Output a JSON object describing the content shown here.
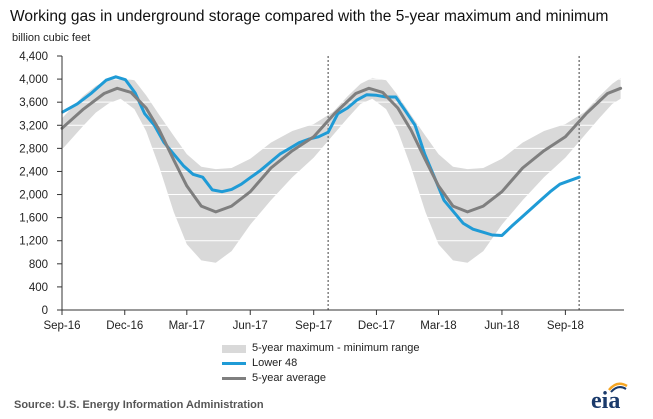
{
  "header": {
    "title": "Working gas in underground  storage compared with the 5-year maximum and minimum",
    "units": "billion cubic feet"
  },
  "legend": {
    "range_label": "5-year maximum - minimum range",
    "lower48_label": "Lower 48",
    "avg_label": "5-year average"
  },
  "footer": {
    "source": "Source:  U.S. Energy Information Administration",
    "logo_text": "eia"
  },
  "colors": {
    "range": "#d9d9d9",
    "lower48": "#1f9bd6",
    "average": "#7f7f7f",
    "axis": "#333333",
    "divider": "#808080",
    "logo": "#1a3a6b",
    "logo_accent": "#f6a623"
  },
  "chart_data": {
    "type": "line",
    "ylabel": "billion cubic feet",
    "ylim": [
      0,
      4400
    ],
    "yticks": [
      0,
      400,
      800,
      1200,
      1600,
      2000,
      2400,
      2800,
      3200,
      3600,
      4000,
      4400
    ],
    "ytick_labels": [
      "0",
      "400",
      "800",
      "1,200",
      "1,600",
      "2,000",
      "2,400",
      "2,800",
      "3,200",
      "3,600",
      "4,000",
      "4,400"
    ],
    "xlim": [
      "2016-09-01",
      "2018-11-25"
    ],
    "xticks": [
      "2016-09-01",
      "2016-12-01",
      "2017-03-01",
      "2017-06-01",
      "2017-09-01",
      "2017-12-01",
      "2018-03-01",
      "2018-06-01",
      "2018-09-01"
    ],
    "xtick_labels": [
      "Sep-16",
      "Dec-16",
      "Mar-17",
      "Jun-17",
      "Sep-17",
      "Dec-17",
      "Mar-18",
      "Jun-18",
      "Sep-18"
    ],
    "grid": "horizontal",
    "dividers": [
      "2017-09-22",
      "2018-09-21"
    ],
    "series": [
      {
        "name": "5-year maximum - minimum range",
        "kind": "band",
        "x": [
          "2016-09-01",
          "2016-10-01",
          "2016-10-20",
          "2016-11-08",
          "2016-11-25",
          "2016-12-15",
          "2017-01-01",
          "2017-01-20",
          "2017-02-10",
          "2017-03-01",
          "2017-03-22",
          "2017-04-12",
          "2017-05-05",
          "2017-06-01",
          "2017-07-01",
          "2017-08-01",
          "2017-09-01",
          "2017-09-29",
          "2017-10-20",
          "2017-11-08",
          "2017-11-25",
          "2017-12-15",
          "2018-01-01",
          "2018-01-20",
          "2018-02-10",
          "2018-03-01",
          "2018-03-22",
          "2018-04-12",
          "2018-05-05",
          "2018-06-01",
          "2018-07-01",
          "2018-08-01",
          "2018-09-01",
          "2018-09-29",
          "2018-10-20",
          "2018-11-08",
          "2018-11-20"
        ],
        "upper": [
          3320,
          3700,
          3880,
          4000,
          4020,
          3980,
          3720,
          3380,
          3020,
          2700,
          2480,
          2440,
          2460,
          2620,
          2900,
          3100,
          3220,
          3430,
          3700,
          3920,
          4020,
          3980,
          3720,
          3380,
          3020,
          2700,
          2480,
          2440,
          2460,
          2620,
          2900,
          3100,
          3220,
          3430,
          3700,
          3920,
          4020
        ],
        "lower": [
          2780,
          3180,
          3420,
          3580,
          3660,
          3480,
          3100,
          2480,
          1700,
          1140,
          860,
          820,
          1020,
          1480,
          1900,
          2300,
          2640,
          3030,
          3320,
          3570,
          3660,
          3480,
          3100,
          2480,
          1700,
          1140,
          860,
          820,
          1020,
          1480,
          1900,
          2300,
          2640,
          3030,
          3320,
          3570,
          3660
        ]
      },
      {
        "name": "Lower 48",
        "x": [
          "2016-09-02",
          "2016-09-23",
          "2016-10-14",
          "2016-11-04",
          "2016-11-18",
          "2016-12-02",
          "2016-12-16",
          "2016-12-30",
          "2017-01-13",
          "2017-01-27",
          "2017-02-10",
          "2017-02-24",
          "2017-03-10",
          "2017-03-24",
          "2017-04-07",
          "2017-04-21",
          "2017-05-05",
          "2017-05-19",
          "2017-06-02",
          "2017-06-16",
          "2017-06-30",
          "2017-07-14",
          "2017-07-28",
          "2017-08-11",
          "2017-08-25",
          "2017-09-08",
          "2017-09-22",
          "2017-10-06",
          "2017-10-20",
          "2017-11-03",
          "2017-11-17",
          "2017-12-01",
          "2017-12-15",
          "2017-12-29",
          "2018-01-12",
          "2018-01-26",
          "2018-02-09",
          "2018-02-23",
          "2018-03-09",
          "2018-03-23",
          "2018-04-06",
          "2018-04-20",
          "2018-05-04",
          "2018-05-18",
          "2018-06-01",
          "2018-06-15",
          "2018-06-29",
          "2018-07-13",
          "2018-07-27",
          "2018-08-10",
          "2018-08-24",
          "2018-09-07",
          "2018-09-21"
        ],
        "y": [
          3430,
          3570,
          3760,
          3980,
          4040,
          3990,
          3760,
          3400,
          3200,
          2900,
          2700,
          2500,
          2350,
          2300,
          2080,
          2050,
          2090,
          2180,
          2300,
          2420,
          2560,
          2700,
          2800,
          2900,
          2960,
          3000,
          3080,
          3400,
          3500,
          3640,
          3730,
          3720,
          3690,
          3690,
          3450,
          3200,
          2700,
          2300,
          1900,
          1700,
          1500,
          1400,
          1350,
          1300,
          1290,
          1450,
          1600,
          1750,
          1900,
          2050,
          2180,
          2240,
          2300
        ]
      },
      {
        "name": "5-year average",
        "x": [
          "2016-09-01",
          "2016-10-01",
          "2016-11-01",
          "2016-11-20",
          "2016-12-10",
          "2017-01-01",
          "2017-01-20",
          "2017-02-10",
          "2017-03-01",
          "2017-03-22",
          "2017-04-12",
          "2017-05-05",
          "2017-06-01",
          "2017-07-01",
          "2017-08-01",
          "2017-09-01",
          "2017-10-01",
          "2017-11-01",
          "2017-11-20",
          "2017-12-10",
          "2018-01-01",
          "2018-01-20",
          "2018-02-10",
          "2018-03-01",
          "2018-03-22",
          "2018-04-12",
          "2018-05-05",
          "2018-06-01",
          "2018-07-01",
          "2018-08-01",
          "2018-09-01",
          "2018-10-01",
          "2018-11-01",
          "2018-11-20"
        ],
        "y": [
          3150,
          3470,
          3750,
          3840,
          3770,
          3500,
          3120,
          2600,
          2150,
          1800,
          1700,
          1800,
          2050,
          2460,
          2760,
          3000,
          3400,
          3750,
          3840,
          3770,
          3500,
          3120,
          2600,
          2150,
          1800,
          1700,
          1800,
          2050,
          2460,
          2760,
          3000,
          3400,
          3750,
          3840
        ]
      }
    ]
  }
}
